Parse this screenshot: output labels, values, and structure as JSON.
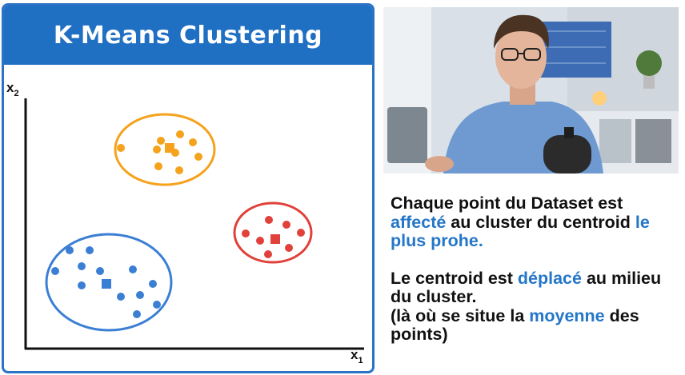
{
  "slide": {
    "title": "K-Means Clustering",
    "x_axis_label": "x",
    "x_axis_sub": "1",
    "y_axis_label": "x",
    "y_axis_sub": "2"
  },
  "clusters": [
    {
      "color": "#f5a21c"
    },
    {
      "color": "#e0413a"
    },
    {
      "color": "#3b7fd4"
    }
  ],
  "explanation": {
    "p1_part1": "Chaque point du Dataset est ",
    "p1_hl1": "affecté",
    "p1_part2": " au cluster du centroid ",
    "p1_hl2": "le plus prohe.",
    "p2_part1": "Le centroid est ",
    "p2_hl1": "déplacé",
    "p2_part2": " au milieu du cluster.",
    "p3_part1": "(là où se situe la ",
    "p3_hl1": "moyenne",
    "p3_part2": " des points)"
  },
  "colors": {
    "header_blue": "#1f6fc2",
    "highlight_blue": "#2476c8"
  }
}
